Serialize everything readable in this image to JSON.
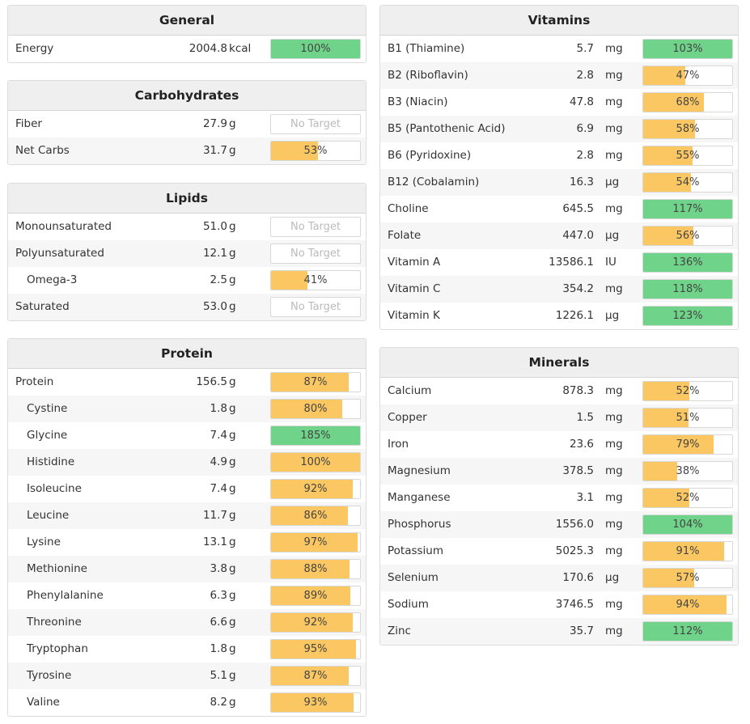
{
  "colors": {
    "green": "#6fd389",
    "yellow": "#fac762",
    "header_bg": "#efefef"
  },
  "general": {
    "title": "General",
    "rows": [
      {
        "name": "Energy",
        "amount": "2004.8",
        "unit": "kcal",
        "pct": "100%",
        "value": 100,
        "color": "green"
      }
    ]
  },
  "carbohydrates": {
    "title": "Carbohydrates",
    "rows": [
      {
        "name": "Fiber",
        "amount": "27.9",
        "unit": "g",
        "pct": "No Target",
        "value": 0,
        "color": "none"
      },
      {
        "name": "Net Carbs",
        "amount": "31.7",
        "unit": "g",
        "pct": "53%",
        "value": 53,
        "color": "yellow"
      }
    ]
  },
  "lipids": {
    "title": "Lipids",
    "rows": [
      {
        "name": "Monounsaturated",
        "amount": "51.0",
        "unit": "g",
        "pct": "No Target",
        "value": 0,
        "color": "none"
      },
      {
        "name": "Polyunsaturated",
        "amount": "12.1",
        "unit": "g",
        "pct": "No Target",
        "value": 0,
        "color": "none"
      },
      {
        "name": "Omega-3",
        "amount": "2.5",
        "unit": "g",
        "pct": "41%",
        "value": 41,
        "color": "yellow",
        "indent": true
      },
      {
        "name": "Saturated",
        "amount": "53.0",
        "unit": "g",
        "pct": "No Target",
        "value": 0,
        "color": "none"
      }
    ]
  },
  "protein": {
    "title": "Protein",
    "rows": [
      {
        "name": "Protein",
        "amount": "156.5",
        "unit": "g",
        "pct": "87%",
        "value": 87,
        "color": "yellow"
      },
      {
        "name": "Cystine",
        "amount": "1.8",
        "unit": "g",
        "pct": "80%",
        "value": 80,
        "color": "yellow",
        "indent": true
      },
      {
        "name": "Glycine",
        "amount": "7.4",
        "unit": "g",
        "pct": "185%",
        "value": 185,
        "color": "green",
        "indent": true
      },
      {
        "name": "Histidine",
        "amount": "4.9",
        "unit": "g",
        "pct": "100%",
        "value": 100,
        "color": "yellow",
        "indent": true
      },
      {
        "name": "Isoleucine",
        "amount": "7.4",
        "unit": "g",
        "pct": "92%",
        "value": 92,
        "color": "yellow",
        "indent": true
      },
      {
        "name": "Leucine",
        "amount": "11.7",
        "unit": "g",
        "pct": "86%",
        "value": 86,
        "color": "yellow",
        "indent": true
      },
      {
        "name": "Lysine",
        "amount": "13.1",
        "unit": "g",
        "pct": "97%",
        "value": 97,
        "color": "yellow",
        "indent": true
      },
      {
        "name": "Methionine",
        "amount": "3.8",
        "unit": "g",
        "pct": "88%",
        "value": 88,
        "color": "yellow",
        "indent": true
      },
      {
        "name": "Phenylalanine",
        "amount": "6.3",
        "unit": "g",
        "pct": "89%",
        "value": 89,
        "color": "yellow",
        "indent": true
      },
      {
        "name": "Threonine",
        "amount": "6.6",
        "unit": "g",
        "pct": "92%",
        "value": 92,
        "color": "yellow",
        "indent": true
      },
      {
        "name": "Tryptophan",
        "amount": "1.8",
        "unit": "g",
        "pct": "95%",
        "value": 95,
        "color": "yellow",
        "indent": true
      },
      {
        "name": "Tyrosine",
        "amount": "5.1",
        "unit": "g",
        "pct": "87%",
        "value": 87,
        "color": "yellow",
        "indent": true
      },
      {
        "name": "Valine",
        "amount": "8.2",
        "unit": "g",
        "pct": "93%",
        "value": 93,
        "color": "yellow",
        "indent": true
      }
    ]
  },
  "vitamins": {
    "title": "Vitamins",
    "rows": [
      {
        "name": "B1 (Thiamine)",
        "amount": "5.7",
        "unit": "mg",
        "pct": "103%",
        "value": 103,
        "color": "green"
      },
      {
        "name": "B2 (Riboflavin)",
        "amount": "2.8",
        "unit": "mg",
        "pct": "47%",
        "value": 47,
        "color": "yellow"
      },
      {
        "name": "B3 (Niacin)",
        "amount": "47.8",
        "unit": "mg",
        "pct": "68%",
        "value": 68,
        "color": "yellow"
      },
      {
        "name": "B5 (Pantothenic Acid)",
        "amount": "6.9",
        "unit": "mg",
        "pct": "58%",
        "value": 58,
        "color": "yellow"
      },
      {
        "name": "B6 (Pyridoxine)",
        "amount": "2.8",
        "unit": "mg",
        "pct": "55%",
        "value": 55,
        "color": "yellow"
      },
      {
        "name": "B12 (Cobalamin)",
        "amount": "16.3",
        "unit": "µg",
        "pct": "54%",
        "value": 54,
        "color": "yellow"
      },
      {
        "name": "Choline",
        "amount": "645.5",
        "unit": "mg",
        "pct": "117%",
        "value": 117,
        "color": "green"
      },
      {
        "name": "Folate",
        "amount": "447.0",
        "unit": "µg",
        "pct": "56%",
        "value": 56,
        "color": "yellow"
      },
      {
        "name": "Vitamin A",
        "amount": "13586.1",
        "unit": "IU",
        "pct": "136%",
        "value": 136,
        "color": "green"
      },
      {
        "name": "Vitamin C",
        "amount": "354.2",
        "unit": "mg",
        "pct": "118%",
        "value": 118,
        "color": "green"
      },
      {
        "name": "Vitamin K",
        "amount": "1226.1",
        "unit": "µg",
        "pct": "123%",
        "value": 123,
        "color": "green"
      }
    ]
  },
  "minerals": {
    "title": "Minerals",
    "rows": [
      {
        "name": "Calcium",
        "amount": "878.3",
        "unit": "mg",
        "pct": "52%",
        "value": 52,
        "color": "yellow"
      },
      {
        "name": "Copper",
        "amount": "1.5",
        "unit": "mg",
        "pct": "51%",
        "value": 51,
        "color": "yellow"
      },
      {
        "name": "Iron",
        "amount": "23.6",
        "unit": "mg",
        "pct": "79%",
        "value": 79,
        "color": "yellow"
      },
      {
        "name": "Magnesium",
        "amount": "378.5",
        "unit": "mg",
        "pct": "38%",
        "value": 38,
        "color": "yellow"
      },
      {
        "name": "Manganese",
        "amount": "3.1",
        "unit": "mg",
        "pct": "52%",
        "value": 52,
        "color": "yellow"
      },
      {
        "name": "Phosphorus",
        "amount": "1556.0",
        "unit": "mg",
        "pct": "104%",
        "value": 104,
        "color": "green"
      },
      {
        "name": "Potassium",
        "amount": "5025.3",
        "unit": "mg",
        "pct": "91%",
        "value": 91,
        "color": "yellow"
      },
      {
        "name": "Selenium",
        "amount": "170.6",
        "unit": "µg",
        "pct": "57%",
        "value": 57,
        "color": "yellow"
      },
      {
        "name": "Sodium",
        "amount": "3746.5",
        "unit": "mg",
        "pct": "94%",
        "value": 94,
        "color": "yellow"
      },
      {
        "name": "Zinc",
        "amount": "35.7",
        "unit": "mg",
        "pct": "112%",
        "value": 112,
        "color": "green"
      }
    ]
  }
}
